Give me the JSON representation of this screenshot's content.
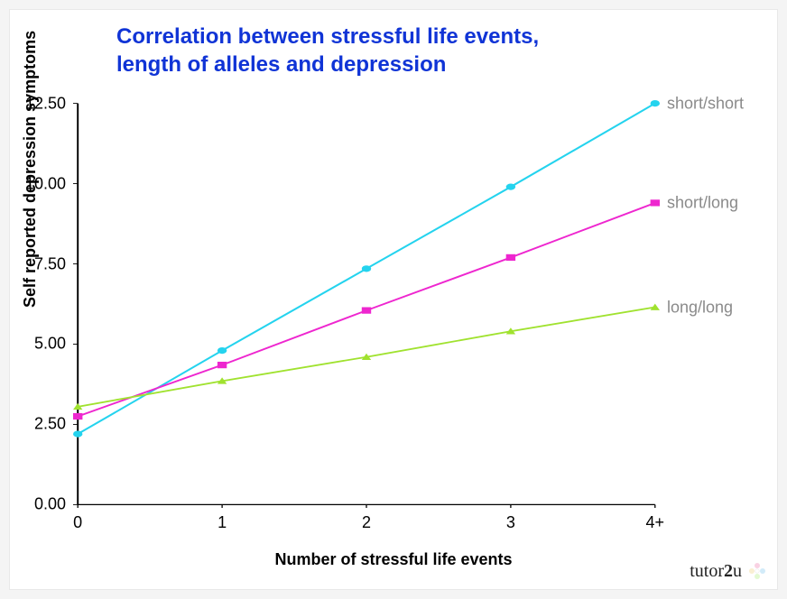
{
  "title_line1": "Correlation between stressful life events,",
  "title_line2": "length of alleles and depression",
  "title_color": "#1034d6",
  "y_axis_label": "Self reported depression symptoms",
  "x_axis_label": "Number of stressful life events",
  "background_color": "#ffffff",
  "axis_color": "#000000",
  "axis_width": 3,
  "tick_color": "#000000",
  "series_label_color": "#8a8a8a",
  "chart": {
    "type": "line",
    "xlim": [
      0,
      4
    ],
    "ylim": [
      0,
      12.5
    ],
    "x_categories": [
      "0",
      "1",
      "2",
      "3",
      "4+"
    ],
    "y_ticks": [
      0.0,
      2.5,
      5.0,
      7.5,
      10.0,
      12.5
    ],
    "y_tick_labels": [
      "0.00",
      "2.50",
      "5.00",
      "7.50",
      "10.00",
      "12.50"
    ],
    "line_width": 4,
    "marker_size": 8,
    "series": [
      {
        "name": "short/short",
        "color": "#24d3ee",
        "marker": "circle",
        "data": [
          2.2,
          4.8,
          7.35,
          9.9,
          12.5
        ]
      },
      {
        "name": "short/long",
        "color": "#ee26cf",
        "marker": "square",
        "data": [
          2.75,
          4.35,
          6.05,
          7.7,
          9.4
        ]
      },
      {
        "name": "long/long",
        "color": "#a0e22f",
        "marker": "triangle",
        "data": [
          3.05,
          3.85,
          4.6,
          5.4,
          6.15
        ]
      }
    ]
  },
  "brand": {
    "part1": "tutor",
    "part2_bold": "2",
    "part3": "u"
  }
}
